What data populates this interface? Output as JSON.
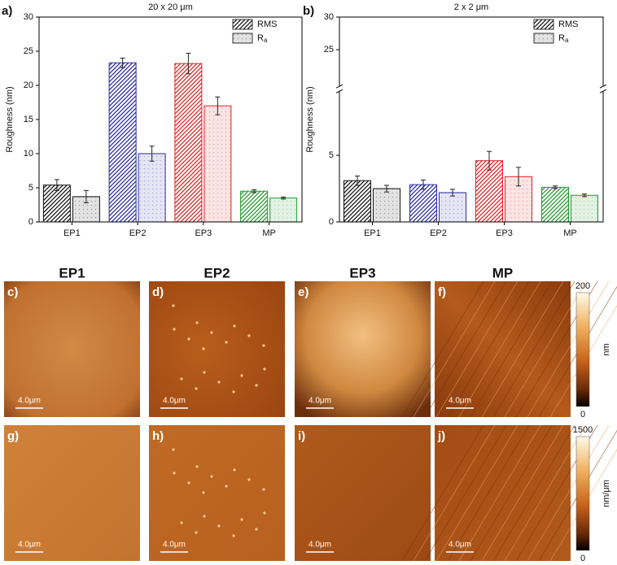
{
  "chart_data": [
    {
      "type": "bar",
      "panel": "a)",
      "title": "20 x 20 μm",
      "y_label": "Roughness (nm)",
      "categories": [
        "EP1",
        "EP2",
        "EP3",
        "MP"
      ],
      "category_colors": [
        "#111111",
        "#2a2aa8",
        "#e02424",
        "#1f9a2a"
      ],
      "series": [
        {
          "name": "RMS",
          "values": [
            5.4,
            23.3,
            23.2,
            4.5
          ],
          "errors": [
            0.8,
            0.7,
            1.5,
            0.2
          ]
        },
        {
          "name": "Ra",
          "values": [
            3.7,
            10.0,
            17.0,
            3.5
          ],
          "errors": [
            0.9,
            1.1,
            1.3,
            0.15
          ]
        }
      ],
      "ylim": [
        0,
        30
      ],
      "yticks": [
        0,
        5,
        10,
        15,
        20,
        25,
        30
      ],
      "legend": "top-right"
    },
    {
      "type": "bar",
      "panel": "b)",
      "title": "2 x 2 μm",
      "y_label": "Roughness (nm)",
      "categories": [
        "EP1",
        "EP2",
        "EP3",
        "MP"
      ],
      "category_colors": [
        "#111111",
        "#2a2aa8",
        "#e02424",
        "#1f9a2a"
      ],
      "series": [
        {
          "name": "RMS",
          "values": [
            3.1,
            2.8,
            4.6,
            2.6
          ],
          "errors": [
            0.35,
            0.35,
            0.7,
            0.1
          ]
        },
        {
          "name": "Ra",
          "values": [
            2.5,
            2.2,
            3.4,
            2.0
          ],
          "errors": [
            0.25,
            0.25,
            0.7,
            0.1
          ]
        }
      ],
      "ylim": [
        0,
        30
      ],
      "ybreak": [
        10,
        19
      ],
      "yticks": [
        0,
        5,
        25,
        30
      ],
      "legend": "top-right"
    }
  ],
  "afm": {
    "columns": [
      "EP1",
      "EP2",
      "EP3",
      "MP"
    ],
    "panels": [
      [
        "c)",
        "d)",
        "e)",
        "f)"
      ],
      [
        "g)",
        "h)",
        "i)",
        "j)"
      ]
    ],
    "scale_bar": "4.0μm",
    "colorbars": [
      {
        "max": 200,
        "min": 0,
        "unit": "nm"
      },
      {
        "max": 1500,
        "min": 0,
        "unit": "nm/μm"
      }
    ]
  }
}
